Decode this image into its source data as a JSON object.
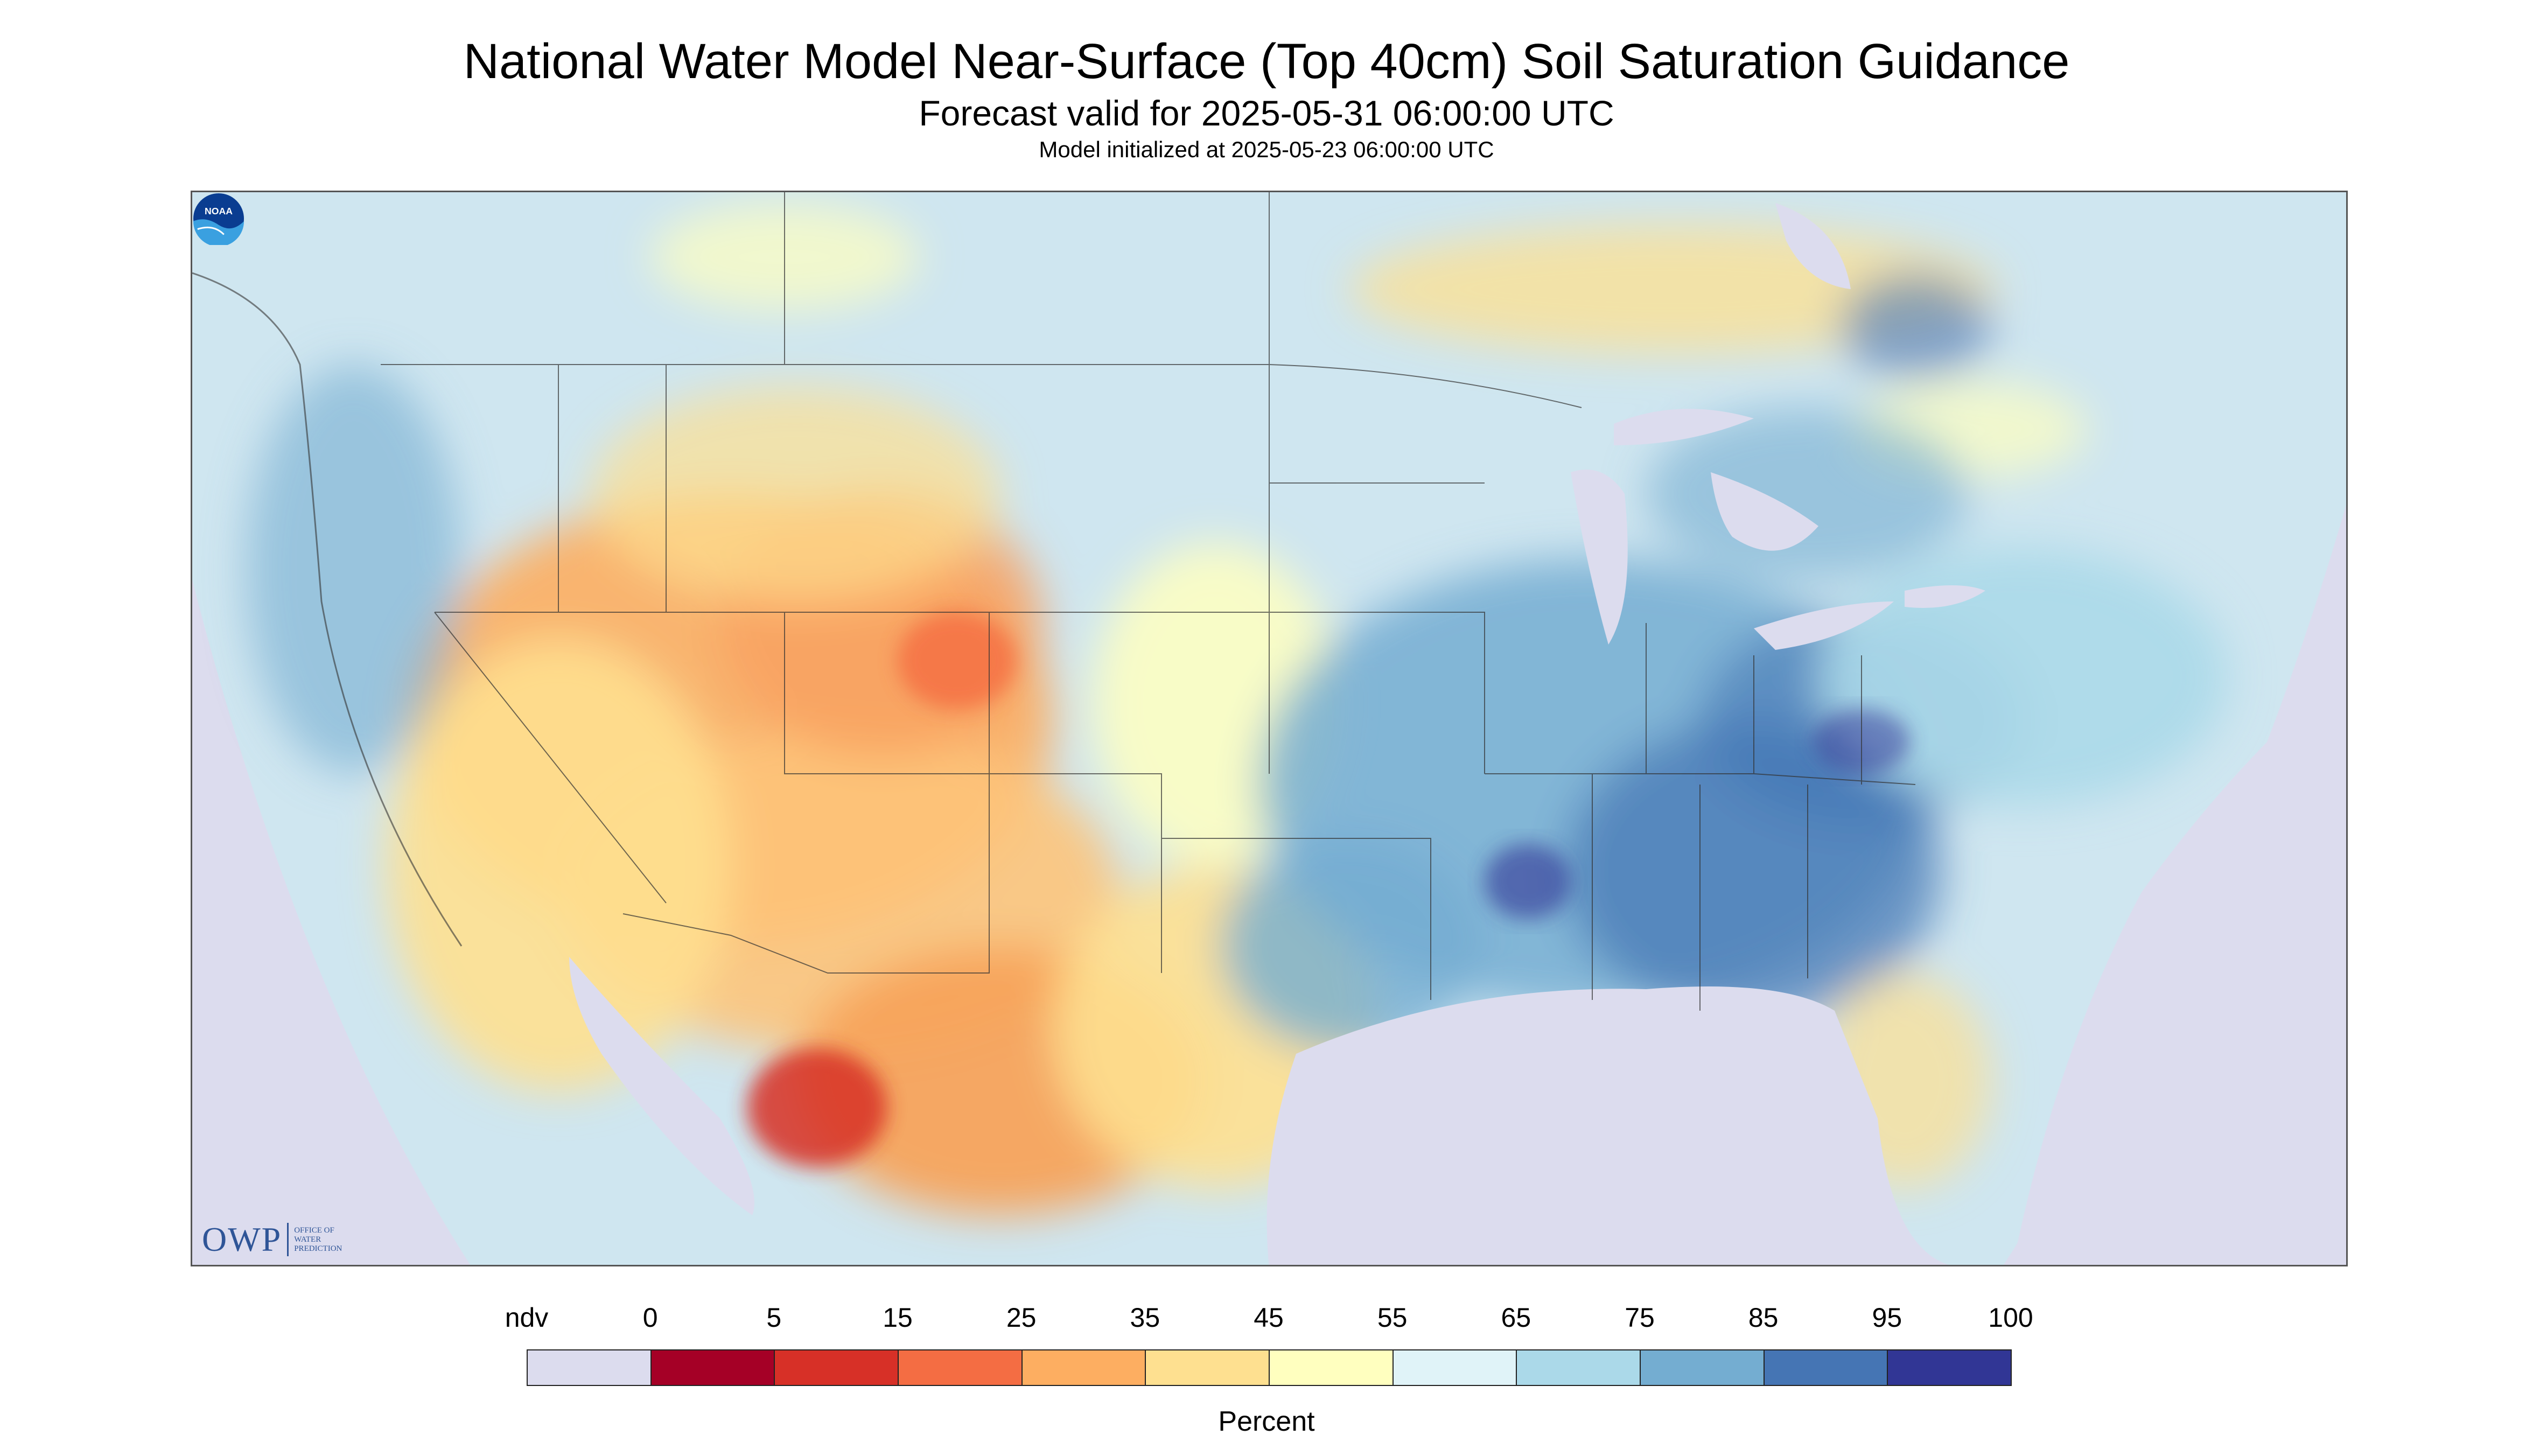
{
  "header": {
    "title": "National Water Model Near-Surface (Top 40cm) Soil Saturation Guidance",
    "forecast_valid": "Forecast valid for 2025-05-31 06:00:00 UTC",
    "initialized": "Model initialized at 2025-05-23 06:00:00 UTC"
  },
  "logos": {
    "owp_big": "OWP",
    "owp_small_1": "OFFICE OF",
    "owp_small_2": "WATER",
    "owp_small_3": "PREDICTION",
    "noaa": "NOAA"
  },
  "colorbar": {
    "title": "Percent",
    "labels": [
      "ndv",
      "0",
      "5",
      "15",
      "25",
      "35",
      "45",
      "55",
      "65",
      "75",
      "85",
      "95",
      "100"
    ],
    "colors": [
      "#dcdcee",
      "#a50026",
      "#d73027",
      "#f46d43",
      "#fdae61",
      "#fee090",
      "#ffffbf",
      "#e0f3f8",
      "#abd9e9",
      "#74add1",
      "#4575b4",
      "#313695"
    ]
  },
  "map": {
    "nodata_color": "#dcdcee",
    "water_color": "#dcdcee",
    "border_color": "#333333"
  }
}
